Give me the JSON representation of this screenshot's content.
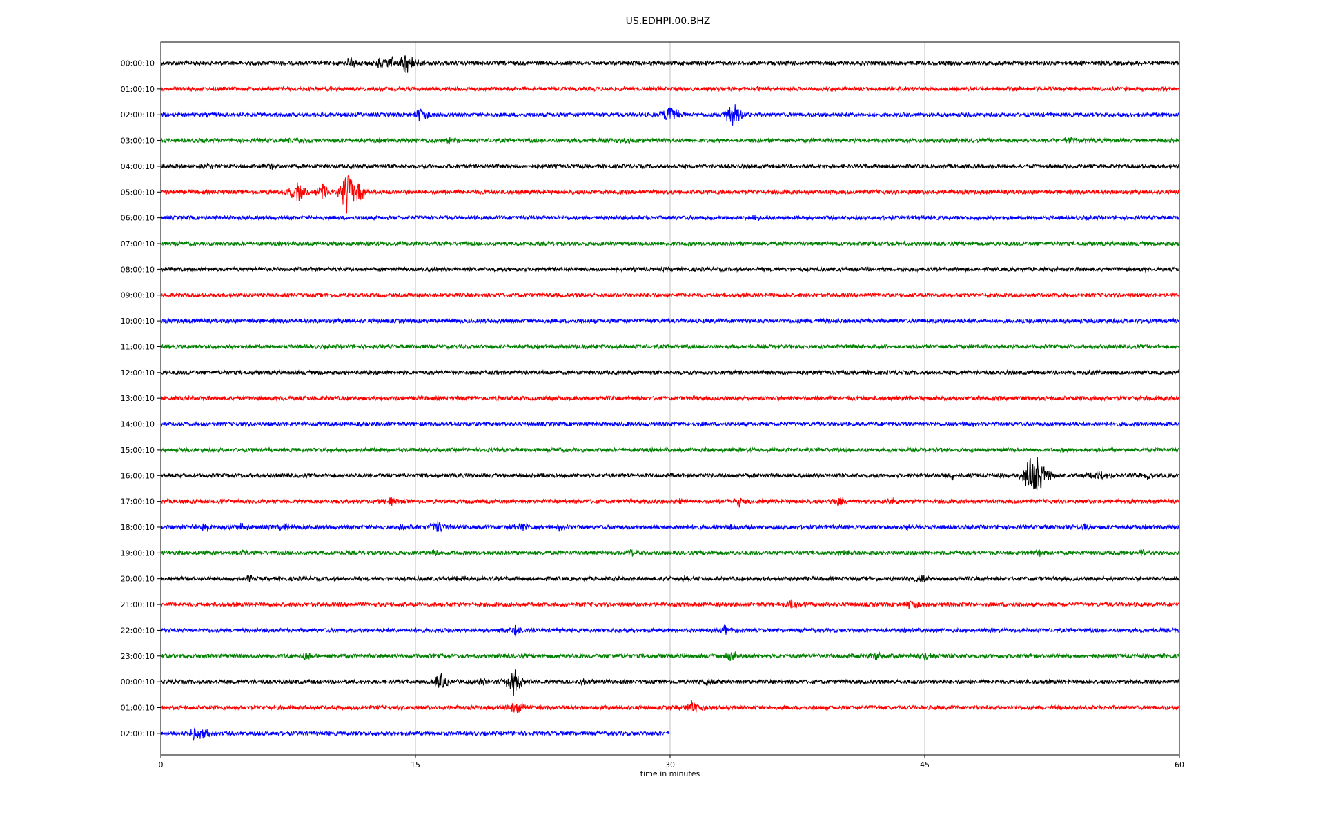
{
  "chart_data": {
    "type": "line",
    "title": "US.EDHPI.00.BHZ",
    "xlabel": "time in minutes",
    "ylabel": "",
    "xlim": [
      0,
      60
    ],
    "x_ticks": [
      0,
      15,
      30,
      45,
      60
    ],
    "grid": "vertical",
    "legend": "none",
    "colors_cycle": [
      "#000000",
      "#ff0000",
      "#0000ff",
      "#008000"
    ],
    "rows": [
      {
        "label": "00:00:10",
        "end_minute": 60,
        "events": [
          {
            "t": 11.2,
            "amp": 0.25
          },
          {
            "t": 12.9,
            "amp": 0.22
          },
          {
            "t": 13.5,
            "amp": 0.3
          },
          {
            "t": 14.4,
            "amp": 0.35
          },
          {
            "t": 14.8,
            "amp": 0.3
          }
        ]
      },
      {
        "label": "01:00:10",
        "end_minute": 60,
        "events": [
          {
            "t": 35.2,
            "amp": 0.08
          }
        ]
      },
      {
        "label": "02:00:10",
        "end_minute": 60,
        "events": [
          {
            "t": 15.3,
            "amp": 0.3
          },
          {
            "t": 30.0,
            "amp": 0.45
          },
          {
            "t": 33.7,
            "amp": 0.55
          }
        ]
      },
      {
        "label": "03:00:10",
        "end_minute": 60,
        "events": [
          {
            "t": 7.6,
            "amp": 0.1
          },
          {
            "t": 17.0,
            "amp": 0.1
          },
          {
            "t": 27.4,
            "amp": 0.1
          },
          {
            "t": 53.5,
            "amp": 0.12
          }
        ]
      },
      {
        "label": "04:00:10",
        "end_minute": 60,
        "events": [
          {
            "t": 2.8,
            "amp": 0.12
          },
          {
            "t": 6.4,
            "amp": 0.12
          }
        ]
      },
      {
        "label": "05:00:10",
        "end_minute": 60,
        "events": [
          {
            "t": 8.1,
            "amp": 0.5
          },
          {
            "t": 9.5,
            "amp": 0.35
          },
          {
            "t": 11.0,
            "amp": 1.0
          },
          {
            "t": 11.6,
            "amp": 0.45
          }
        ]
      },
      {
        "label": "06:00:10",
        "end_minute": 60,
        "events": [
          {
            "t": 34.9,
            "amp": 0.08
          }
        ]
      },
      {
        "label": "07:00:10",
        "end_minute": 60,
        "events": []
      },
      {
        "label": "08:00:10",
        "end_minute": 60,
        "events": []
      },
      {
        "label": "09:00:10",
        "end_minute": 60,
        "events": []
      },
      {
        "label": "10:00:10",
        "end_minute": 60,
        "events": []
      },
      {
        "label": "11:00:10",
        "end_minute": 60,
        "events": [
          {
            "t": 25.0,
            "amp": 0.08
          },
          {
            "t": 41.7,
            "amp": 0.08
          }
        ]
      },
      {
        "label": "12:00:10",
        "end_minute": 60,
        "events": [
          {
            "t": 54.6,
            "amp": 0.08
          }
        ]
      },
      {
        "label": "13:00:10",
        "end_minute": 60,
        "events": []
      },
      {
        "label": "14:00:10",
        "end_minute": 60,
        "events": [
          {
            "t": 47.6,
            "amp": 0.1
          }
        ]
      },
      {
        "label": "15:00:10",
        "end_minute": 60,
        "events": []
      },
      {
        "label": "16:00:10",
        "end_minute": 60,
        "events": [
          {
            "t": 46.6,
            "amp": 0.15
          },
          {
            "t": 51.5,
            "amp": 0.75
          },
          {
            "t": 51.3,
            "amp": 0.65
          },
          {
            "t": 51.9,
            "amp": 0.45
          },
          {
            "t": 55.3,
            "amp": 0.25
          },
          {
            "t": 58.2,
            "amp": 0.2
          }
        ]
      },
      {
        "label": "17:00:10",
        "end_minute": 60,
        "events": [
          {
            "t": 3.5,
            "amp": 0.1
          },
          {
            "t": 13.5,
            "amp": 0.15
          },
          {
            "t": 30.5,
            "amp": 0.1
          },
          {
            "t": 34.1,
            "amp": 0.2
          },
          {
            "t": 39.9,
            "amp": 0.2
          },
          {
            "t": 43.1,
            "amp": 0.12
          }
        ]
      },
      {
        "label": "18:00:10",
        "end_minute": 60,
        "events": [
          {
            "t": 2.6,
            "amp": 0.2
          },
          {
            "t": 4.7,
            "amp": 0.15
          },
          {
            "t": 7.4,
            "amp": 0.2
          },
          {
            "t": 14.2,
            "amp": 0.12
          },
          {
            "t": 16.3,
            "amp": 0.25
          },
          {
            "t": 21.4,
            "amp": 0.18
          },
          {
            "t": 23.5,
            "amp": 0.12
          },
          {
            "t": 33.5,
            "amp": 0.12
          },
          {
            "t": 43.9,
            "amp": 0.12
          },
          {
            "t": 54.3,
            "amp": 0.12
          }
        ]
      },
      {
        "label": "19:00:10",
        "end_minute": 60,
        "events": [
          {
            "t": 4.7,
            "amp": 0.12
          },
          {
            "t": 16.2,
            "amp": 0.12
          },
          {
            "t": 27.8,
            "amp": 0.12
          },
          {
            "t": 40.3,
            "amp": 0.12
          },
          {
            "t": 51.7,
            "amp": 0.12
          },
          {
            "t": 57.9,
            "amp": 0.12
          }
        ]
      },
      {
        "label": "20:00:10",
        "end_minute": 60,
        "events": [
          {
            "t": 5.2,
            "amp": 0.1
          },
          {
            "t": 17.9,
            "amp": 0.12
          },
          {
            "t": 30.7,
            "amp": 0.12
          },
          {
            "t": 44.8,
            "amp": 0.12
          }
        ]
      },
      {
        "label": "21:00:10",
        "end_minute": 60,
        "events": [
          {
            "t": 37.2,
            "amp": 0.25
          },
          {
            "t": 44.2,
            "amp": 0.2
          }
        ]
      },
      {
        "label": "22:00:10",
        "end_minute": 60,
        "events": [
          {
            "t": 20.9,
            "amp": 0.2
          },
          {
            "t": 33.3,
            "amp": 0.15
          }
        ]
      },
      {
        "label": "23:00:10",
        "end_minute": 60,
        "events": [
          {
            "t": 8.5,
            "amp": 0.18
          },
          {
            "t": 33.6,
            "amp": 0.25
          },
          {
            "t": 42.1,
            "amp": 0.15
          },
          {
            "t": 45.0,
            "amp": 0.15
          }
        ]
      },
      {
        "label": "00:00:10",
        "end_minute": 60,
        "events": [
          {
            "t": 16.5,
            "amp": 0.3
          },
          {
            "t": 19.0,
            "amp": 0.15
          },
          {
            "t": 20.8,
            "amp": 0.55
          },
          {
            "t": 25.1,
            "amp": 0.12
          },
          {
            "t": 32.2,
            "amp": 0.12
          }
        ]
      },
      {
        "label": "01:00:10",
        "end_minute": 60,
        "events": [
          {
            "t": 21.0,
            "amp": 0.3
          },
          {
            "t": 31.3,
            "amp": 0.3
          }
        ]
      },
      {
        "label": "02:00:10",
        "end_minute": 30,
        "events": [
          {
            "t": 2.0,
            "amp": 0.25
          },
          {
            "t": 2.6,
            "amp": 0.2
          }
        ]
      }
    ]
  }
}
